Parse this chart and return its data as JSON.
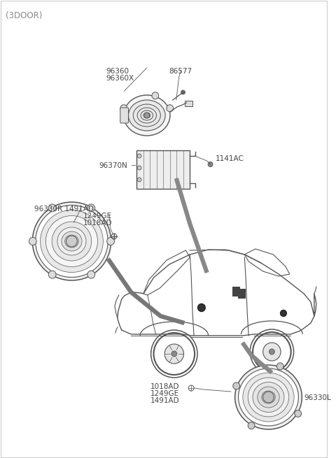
{
  "title": "(3DOOR)",
  "bg_color": "#ffffff",
  "text_color": "#444444",
  "line_color": "#555555",
  "figsize": [
    4.8,
    6.55
  ],
  "dpi": 100,
  "labels": {
    "top_l1": "96360",
    "top_l2": "96360X",
    "top_r": "86577",
    "amp_right": "1141AC",
    "amp_left": "96370N",
    "front_l1": "96330R 1491AD",
    "front_l2": "1249GE",
    "front_l3": "1018AD",
    "rear_l1": "1018AD",
    "rear_l2": "1249GE",
    "rear_l3": "1491AD",
    "rear_r": "96330L"
  }
}
